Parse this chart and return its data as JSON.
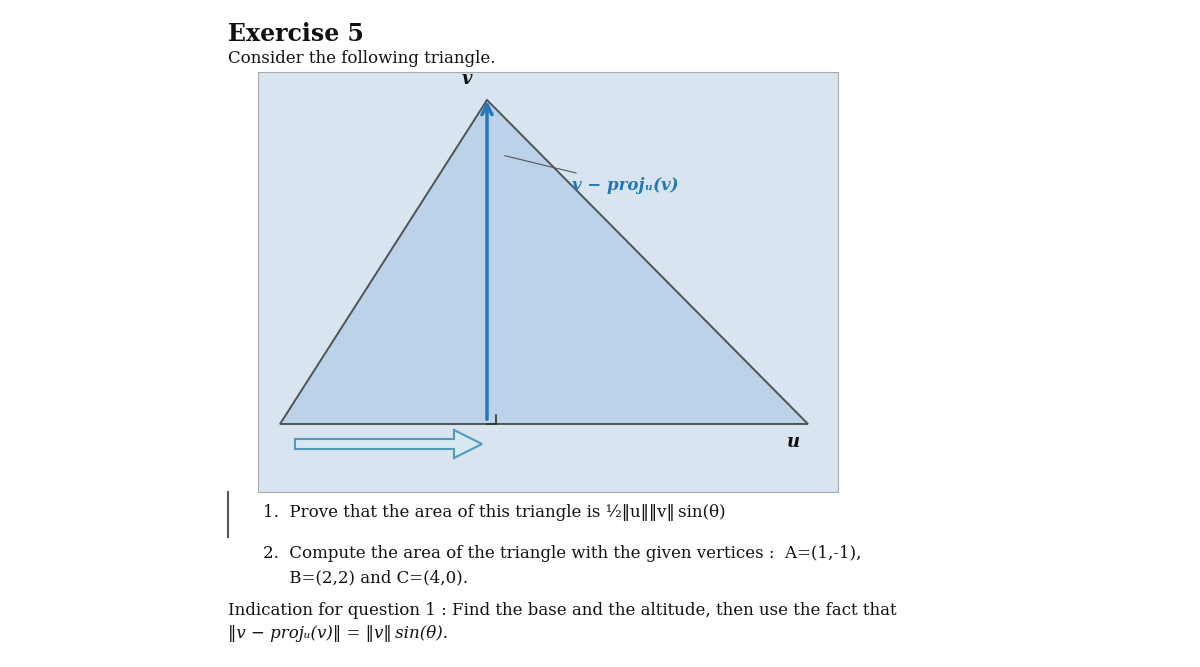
{
  "title": "Exercise 5",
  "subtitle": "Consider the following triangle.",
  "bg_color": "#ffffff",
  "image_bg": "#d8e4ef",
  "triangle_fill": "#b8d0e8",
  "triangle_edge": "#555555",
  "altitude_arrow_color": "#2277bb",
  "u_arrow_color": "#5599bb",
  "label_v": "v",
  "label_u": "u",
  "label_proj": "v − projᵤ(v)",
  "q1_text": "1.  Prove that the area of this triangle is ½‖u‖‖v‖ sin(θ)",
  "q2_text_line1": "2.  Compute the area of the triangle with the given vertices :  A=(1,-1),",
  "q2_text_line2": "     B=(2,2) and C=(4,0).",
  "indication_line1": "Indication for question 1 : Find the base and the altitude, then use the fact that",
  "indication_line2": "‖v − projᵤ(v)‖ = ‖v‖ sin(θ).",
  "font_title": 17,
  "font_body": 12,
  "font_label": 13
}
